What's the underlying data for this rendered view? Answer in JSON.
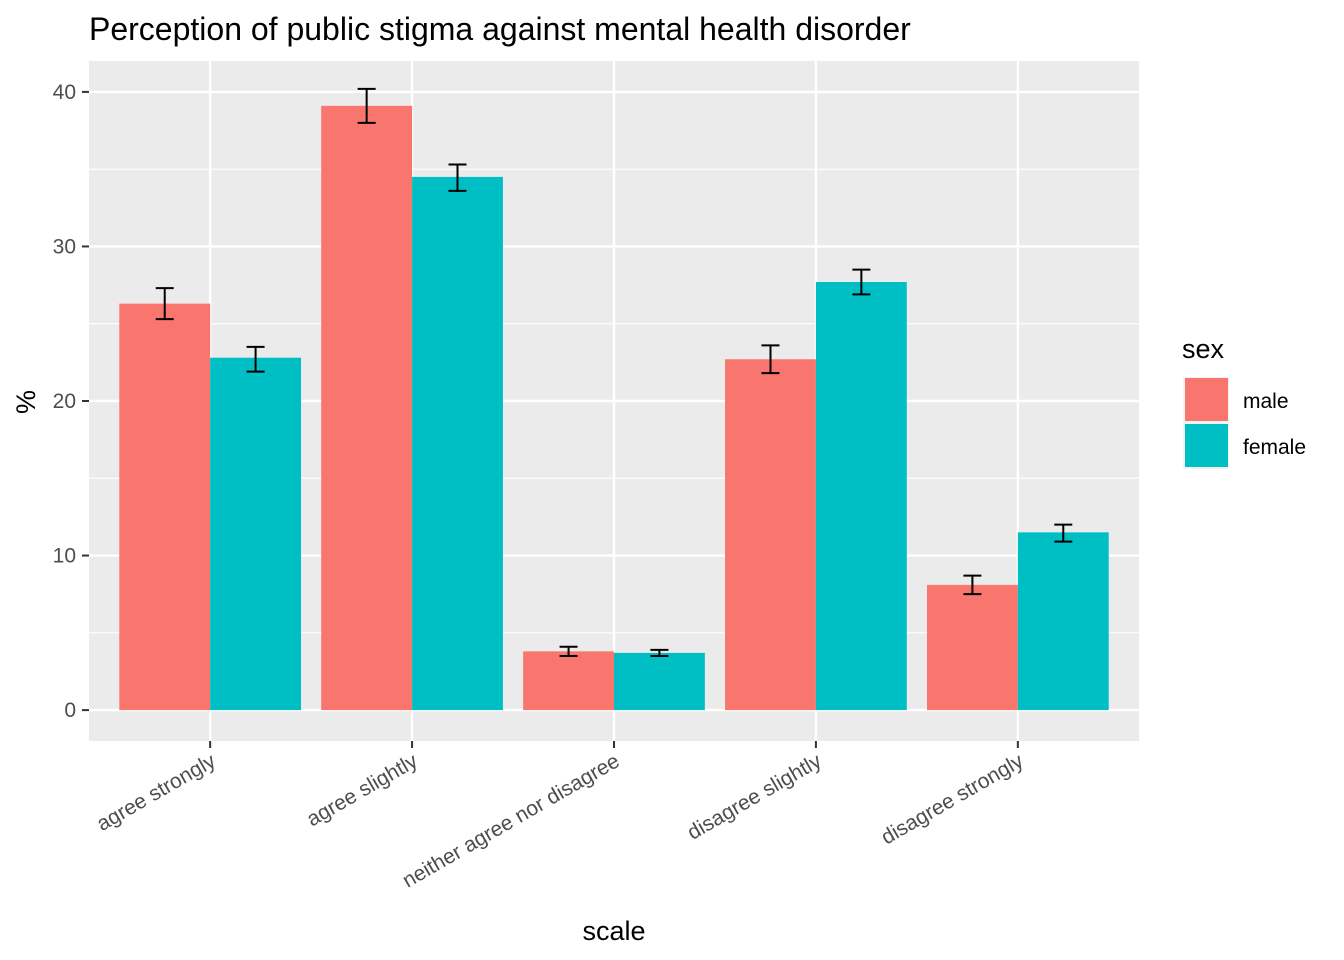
{
  "chart_data": {
    "type": "bar",
    "title": "Perception of public stigma against mental health disorder",
    "xlabel": "scale",
    "ylabel": "%",
    "categories": [
      "agree strongly",
      "agree slightly",
      "neither agree nor disagree",
      "disagree slightly",
      "disagree strongly"
    ],
    "series": [
      {
        "name": "male",
        "color": "#F8766D",
        "values": [
          26.3,
          39.1,
          3.8,
          22.7,
          8.1
        ],
        "error_low": [
          25.3,
          38.0,
          3.5,
          21.8,
          7.5
        ],
        "error_high": [
          27.3,
          40.2,
          4.1,
          23.6,
          8.7
        ]
      },
      {
        "name": "female",
        "color": "#00BFC4",
        "values": [
          22.8,
          34.5,
          3.7,
          27.7,
          11.5
        ],
        "error_low": [
          21.9,
          33.6,
          3.5,
          26.9,
          10.9
        ],
        "error_high": [
          23.5,
          35.3,
          3.9,
          28.5,
          12.0
        ]
      }
    ],
    "yticks": [
      0,
      10,
      20,
      30,
      40
    ],
    "ylim": [
      -2.0,
      42.0
    ],
    "grid": true,
    "legend": {
      "title": "sex",
      "position": "right"
    }
  }
}
